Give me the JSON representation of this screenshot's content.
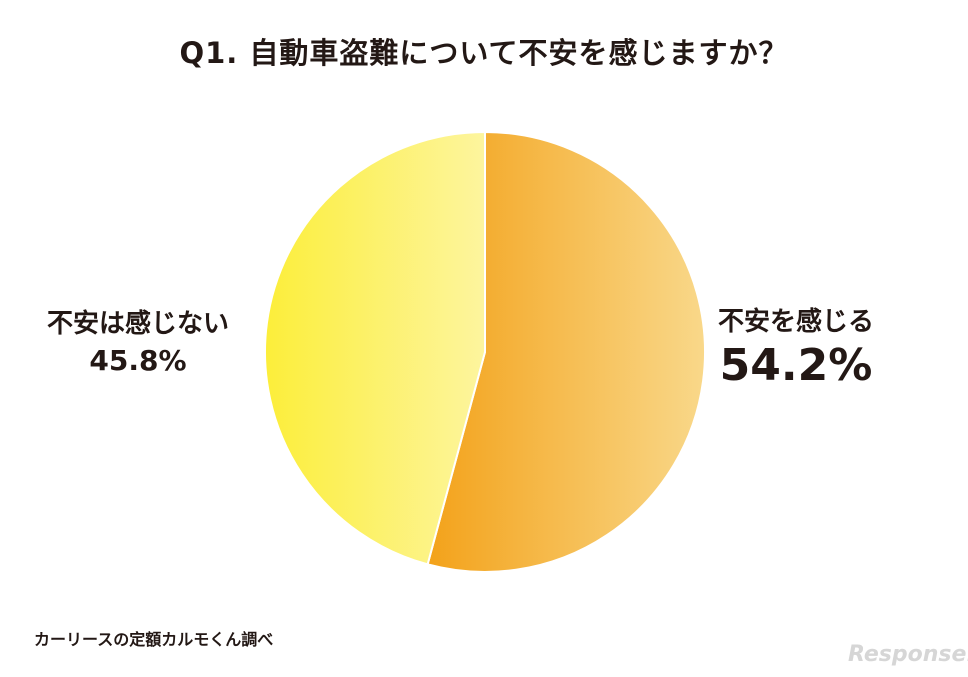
{
  "chart_data": {
    "type": "pie",
    "title": "Q1. 自動車盗難について不安を感じますか？",
    "slices": [
      {
        "label": "不安を感じる",
        "value": 54.2,
        "value_label": "54.2%",
        "color_start": "#f3a21a",
        "color_end": "#f9d88a"
      },
      {
        "label": "不安は感じない",
        "value": 45.8,
        "value_label": "45.8%",
        "color_start": "#fcee3a",
        "color_end": "#fdf59e"
      }
    ],
    "start_angle": "12 o'clock",
    "direction": "clockwise"
  },
  "source": "カーリースの定額カルモくん調べ",
  "watermark": "Response."
}
